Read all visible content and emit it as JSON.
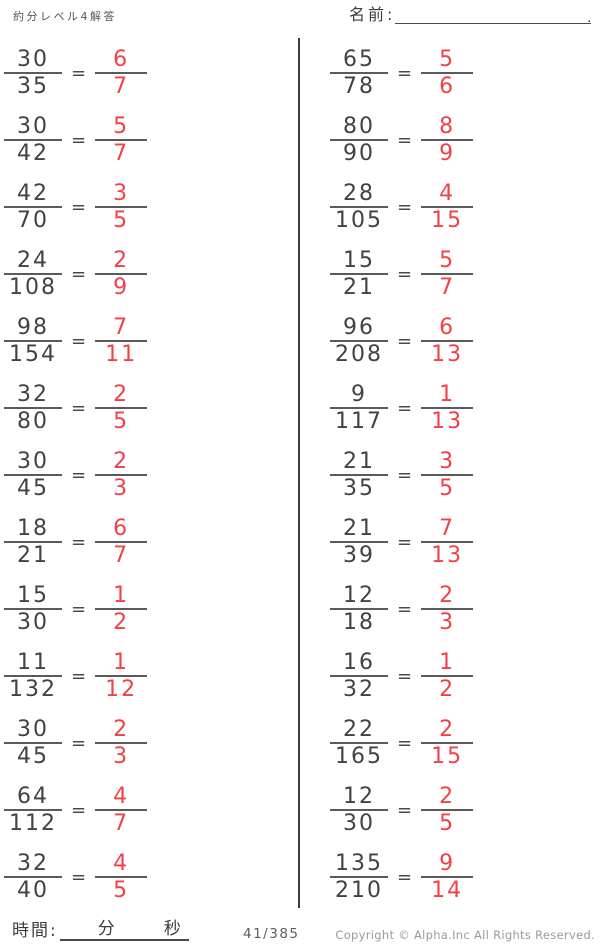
{
  "page": {
    "title": "約分レベル4解答",
    "name_label": "名前:",
    "name_line_end": "."
  },
  "equals_sign": "=",
  "problems": {
    "left": [
      {
        "numerator": "30",
        "denominator": "35",
        "answer_numerator": "6",
        "answer_denominator": "7"
      },
      {
        "numerator": "30",
        "denominator": "42",
        "answer_numerator": "5",
        "answer_denominator": "7"
      },
      {
        "numerator": "42",
        "denominator": "70",
        "answer_numerator": "3",
        "answer_denominator": "5"
      },
      {
        "numerator": "24",
        "denominator": "108",
        "answer_numerator": "2",
        "answer_denominator": "9"
      },
      {
        "numerator": "98",
        "denominator": "154",
        "answer_numerator": "7",
        "answer_denominator": "11"
      },
      {
        "numerator": "32",
        "denominator": "80",
        "answer_numerator": "2",
        "answer_denominator": "5"
      },
      {
        "numerator": "30",
        "denominator": "45",
        "answer_numerator": "2",
        "answer_denominator": "3"
      },
      {
        "numerator": "18",
        "denominator": "21",
        "answer_numerator": "6",
        "answer_denominator": "7"
      },
      {
        "numerator": "15",
        "denominator": "30",
        "answer_numerator": "1",
        "answer_denominator": "2"
      },
      {
        "numerator": "11",
        "denominator": "132",
        "answer_numerator": "1",
        "answer_denominator": "12"
      },
      {
        "numerator": "30",
        "denominator": "45",
        "answer_numerator": "2",
        "answer_denominator": "3"
      },
      {
        "numerator": "64",
        "denominator": "112",
        "answer_numerator": "4",
        "answer_denominator": "7"
      },
      {
        "numerator": "32",
        "denominator": "40",
        "answer_numerator": "4",
        "answer_denominator": "5"
      }
    ],
    "right": [
      {
        "numerator": "65",
        "denominator": "78",
        "answer_numerator": "5",
        "answer_denominator": "6"
      },
      {
        "numerator": "80",
        "denominator": "90",
        "answer_numerator": "8",
        "answer_denominator": "9"
      },
      {
        "numerator": "28",
        "denominator": "105",
        "answer_numerator": "4",
        "answer_denominator": "15"
      },
      {
        "numerator": "15",
        "denominator": "21",
        "answer_numerator": "5",
        "answer_denominator": "7"
      },
      {
        "numerator": "96",
        "denominator": "208",
        "answer_numerator": "6",
        "answer_denominator": "13"
      },
      {
        "numerator": "9",
        "denominator": "117",
        "answer_numerator": "1",
        "answer_denominator": "13"
      },
      {
        "numerator": "21",
        "denominator": "35",
        "answer_numerator": "3",
        "answer_denominator": "5"
      },
      {
        "numerator": "21",
        "denominator": "39",
        "answer_numerator": "7",
        "answer_denominator": "13"
      },
      {
        "numerator": "12",
        "denominator": "18",
        "answer_numerator": "2",
        "answer_denominator": "3"
      },
      {
        "numerator": "16",
        "denominator": "32",
        "answer_numerator": "1",
        "answer_denominator": "2"
      },
      {
        "numerator": "22",
        "denominator": "165",
        "answer_numerator": "2",
        "answer_denominator": "15"
      },
      {
        "numerator": "12",
        "denominator": "30",
        "answer_numerator": "2",
        "answer_denominator": "5"
      },
      {
        "numerator": "135",
        "denominator": "210",
        "answer_numerator": "9",
        "answer_denominator": "14"
      }
    ]
  },
  "footer": {
    "time_label": "時間:",
    "minutes_label": "分",
    "seconds_label": "秒",
    "page_number": "41/385",
    "copyright": "Copyright ©  Alpha.Inc All Rights Reserved."
  },
  "colors": {
    "ink": "#424242",
    "answer_red": "#f24146",
    "fraction_bar": "#5a5a5a",
    "muted_gray": "#9a9a9a"
  }
}
